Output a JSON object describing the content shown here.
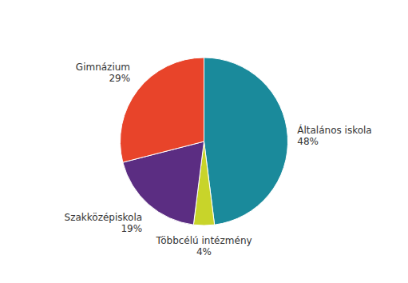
{
  "chart_data": {
    "type": "pie",
    "categories": [
      "Általános iskola",
      "Többcélú intézmény",
      "Szakközépiskola",
      "Gimnázium"
    ],
    "values": [
      48,
      4,
      19,
      29
    ],
    "value_labels": [
      "48%",
      "4%",
      "19%",
      "29%"
    ],
    "colors": [
      "#1a8a9b",
      "#c8d42a",
      "#5b2d82",
      "#e8442a"
    ],
    "data_labels": true
  }
}
